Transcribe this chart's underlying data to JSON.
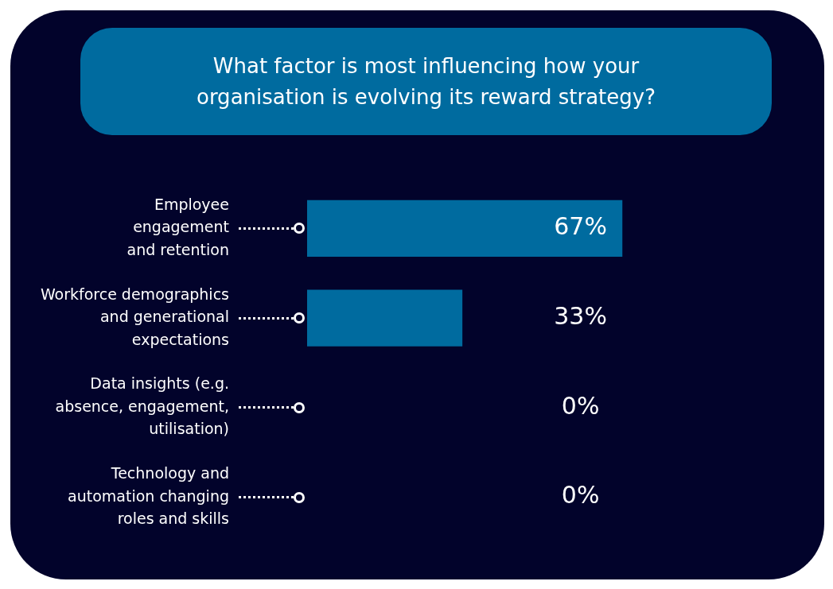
{
  "chart_data": {
    "type": "bar",
    "orientation": "horizontal",
    "title": "What factor is most influencing how your organisation is evolving its reward strategy?",
    "categories": [
      "Employee engagement and retention",
      "Workforce demographics and generational expectations",
      "Data insights (e.g. absence, engagement, utilisation)",
      "Technology and automation changing roles and skills"
    ],
    "values": [
      67,
      33,
      0,
      0
    ],
    "value_labels": [
      "67%",
      "33%",
      "0%",
      "0%"
    ],
    "color": "#006b9f",
    "tick_labels": "y"
  }
}
